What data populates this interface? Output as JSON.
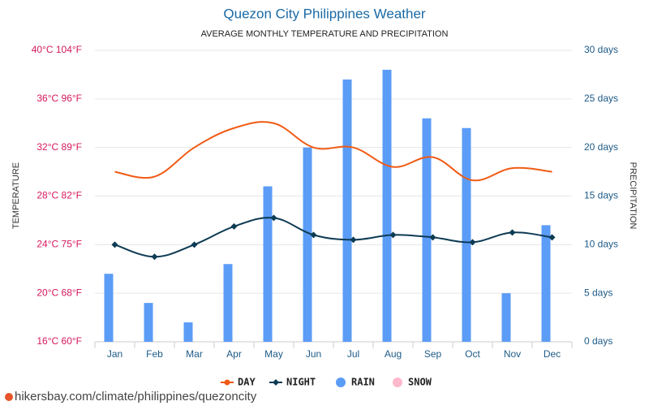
{
  "chart_data": {
    "type": "combo",
    "title": "Quezon City Philippines Weather",
    "subtitle": "AVERAGE MONTHLY TEMPERATURE AND PRECIPITATION",
    "y_label": "TEMPERATURE",
    "y2_label": "PRECIPITATION",
    "categories": [
      "Jan",
      "Feb",
      "Mar",
      "Apr",
      "May",
      "Jun",
      "Jul",
      "Aug",
      "Sep",
      "Oct",
      "Nov",
      "Dec"
    ],
    "series": [
      {
        "name": "DAY",
        "type": "line",
        "color": "#f05a14",
        "values": [
          30,
          29.6,
          32,
          33.6,
          34,
          32,
          32,
          30.4,
          31.2,
          29.3,
          30.3,
          30
        ]
      },
      {
        "name": "NIGHT",
        "type": "line",
        "color": "#0d3b54",
        "marker": "diamond",
        "values": [
          24,
          23,
          24,
          25.5,
          26.2,
          24.8,
          24.4,
          24.8,
          24.6,
          24.2,
          25,
          24.6
        ]
      },
      {
        "name": "RAIN",
        "type": "bar",
        "axis": "y2",
        "color": "#5b9cf6",
        "values": [
          7,
          4,
          2,
          8,
          16,
          20,
          27,
          28,
          23,
          22,
          5,
          12
        ]
      },
      {
        "name": "SNOW",
        "type": "bar",
        "axis": "y2",
        "color": "#ffb8cc",
        "values": [
          0,
          0,
          0,
          0,
          0,
          0,
          0,
          0,
          0,
          0,
          0,
          0
        ]
      }
    ],
    "ylim": [
      16,
      40
    ],
    "yticks": [
      {
        "value": 16,
        "label": "16°C 60°F"
      },
      {
        "value": 20,
        "label": "20°C 68°F"
      },
      {
        "value": 24,
        "label": "24°C 75°F"
      },
      {
        "value": 28,
        "label": "28°C 82°F"
      },
      {
        "value": 32,
        "label": "32°C 89°F"
      },
      {
        "value": 36,
        "label": "36°C 96°F"
      },
      {
        "value": 40,
        "label": "40°C 104°F"
      }
    ],
    "y2lim": [
      0,
      30
    ],
    "y2ticks": [
      {
        "value": 0,
        "label": "0 days"
      },
      {
        "value": 5,
        "label": "5 days"
      },
      {
        "value": 10,
        "label": "10 days"
      },
      {
        "value": 15,
        "label": "15 days"
      },
      {
        "value": 20,
        "label": "20 days"
      },
      {
        "value": 25,
        "label": "25 days"
      },
      {
        "value": 30,
        "label": "30 days"
      }
    ],
    "grid": true,
    "legend": "bottom",
    "source": "hikersbay.com/climate/philippines/quezoncity"
  }
}
